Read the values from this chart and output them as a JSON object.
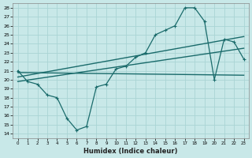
{
  "xlabel": "Humidex (Indice chaleur)",
  "ylabel": "",
  "xlim": [
    -0.5,
    23.5
  ],
  "ylim": [
    13.5,
    28.5
  ],
  "yticks": [
    14,
    15,
    16,
    17,
    18,
    19,
    20,
    21,
    22,
    23,
    24,
    25,
    26,
    27,
    28
  ],
  "xticks": [
    0,
    1,
    2,
    3,
    4,
    5,
    6,
    7,
    8,
    9,
    10,
    11,
    12,
    13,
    14,
    15,
    16,
    17,
    18,
    19,
    20,
    21,
    22,
    23
  ],
  "bg_color": "#c8e8e8",
  "grid_color": "#aad4d4",
  "line_color": "#1a6b6b",
  "curve1_x": [
    0,
    1,
    2,
    3,
    4,
    5,
    6,
    7,
    8,
    9,
    10,
    11,
    12,
    13,
    14,
    15,
    16,
    17,
    18,
    19,
    20,
    21,
    22,
    23
  ],
  "curve1_y": [
    21.0,
    19.8,
    19.5,
    18.3,
    18.0,
    15.7,
    14.4,
    14.8,
    19.2,
    19.5,
    21.2,
    21.5,
    22.5,
    23.0,
    25.0,
    25.5,
    26.0,
    28.0,
    28.0,
    26.5,
    20.0,
    24.5,
    24.2,
    22.3
  ],
  "curve2_x": [
    0,
    23
  ],
  "curve2_y": [
    20.3,
    24.8
  ],
  "curve3_x": [
    0,
    23
  ],
  "curve3_y": [
    19.8,
    23.5
  ],
  "curve4_x": [
    0,
    23
  ],
  "curve4_y": [
    20.8,
    20.5
  ]
}
